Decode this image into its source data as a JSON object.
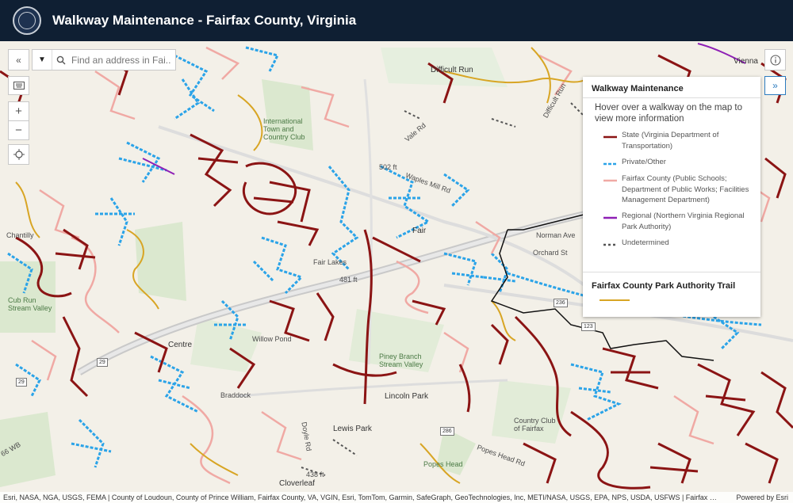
{
  "header": {
    "title": "Walkway Maintenance - Fairfax County, Virginia",
    "seal_icon": "county-seal-icon"
  },
  "search": {
    "placeholder": "Find an address in Fai..."
  },
  "controls": {
    "collapse_icon": "double-chevron-left-icon",
    "keyboard_icon": "keyboard-icon",
    "zoom_in_label": "+",
    "zoom_out_label": "−",
    "locate_icon": "locate-crosshair-icon",
    "info_icon": "info-icon",
    "expand_legend_icon": "double-chevron-right-icon"
  },
  "legend": {
    "title": "Walkway Maintenance",
    "hint": "Hover over a walkway on the map to view more information",
    "items": [
      {
        "label": "State (Virginia Department of Transportation)",
        "color": "#8b1414",
        "style": "solid"
      },
      {
        "label": "Private/Other",
        "color": "#2aa3e8",
        "style": "dashed"
      },
      {
        "label": "Fairfax County (Public Schools; Department of Public Works; Facilities Management Department)",
        "color": "#f0a9a4",
        "style": "solid"
      },
      {
        "label": "Regional (Northern Virginia Regional Park Authority)",
        "color": "#8e1fb5",
        "style": "solid"
      },
      {
        "label": "Undetermined",
        "color": "#555555",
        "style": "dashed"
      }
    ],
    "park_trail_title": "Fairfax County Park Authority Trail",
    "park_trail_color": "#d8a524"
  },
  "map_labels": {
    "vienna": "Vienna",
    "difficult_run": "Difficult Run",
    "difficult_run_river": "Difficult Run",
    "international_town": "International\nTown and\nCountry Club",
    "vale_rd": "Vale Rd",
    "waples_mill": "Waples Mill Rd",
    "elev_502": "502 ft",
    "fair_oaks": "Fair",
    "fair_lakes": "Fair Lakes",
    "norman_ave": "Norman Ave",
    "orchard_st": "Orchard St",
    "elev_481": "481 ft",
    "cub_run": "Cub Run\nStream Valley",
    "chantilly": "Chantilly",
    "centreville": "Centre",
    "willow_pond": "Willow Pond",
    "piney_branch": "Piney Branch\nStream Valley",
    "lincoln_park": "Lincoln Park",
    "lewis_park": "Lewis Park",
    "country_club": "Country Club\nof Fairfax",
    "popes_head_rd": "Popes Head Rd",
    "popes_head": "Popes Head",
    "cloverleaf": "Cloverleaf",
    "elev_438": "438 ft",
    "doyle_rd": "Doyle Rd",
    "braddock": "Braddock",
    "route_29": "29",
    "route_66": "66 WB",
    "route_236a": "236",
    "route_236b": "123",
    "route_286": "286",
    "route_29b": "29"
  },
  "attribution": {
    "text": "Esri, NASA, NGA, USGS, FEMA | County of Loudoun, County of Prince William, Fairfax County, VA, VGIN, Esri, TomTom, Garmin, SafeGraph, GeoTechnologies, Inc, METI/NASA, USGS, EPA, NPS, USDA, USFWS | Fairfax County, ...",
    "powered": "Powered by Esri"
  }
}
